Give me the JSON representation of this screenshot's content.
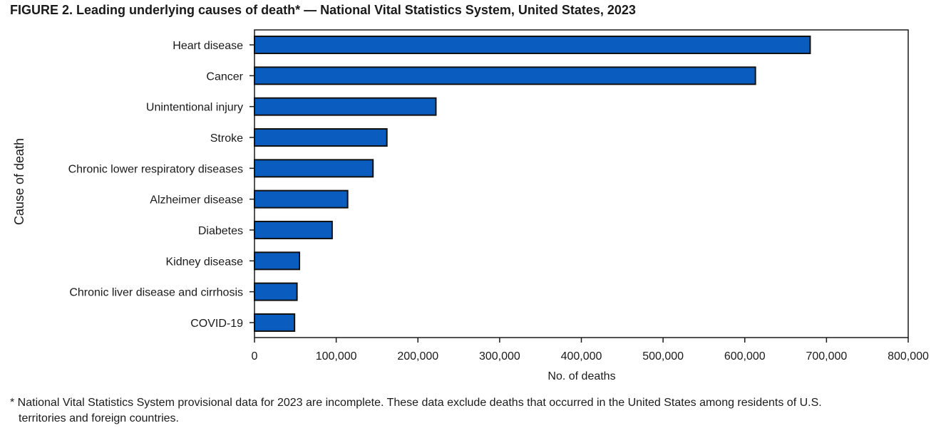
{
  "chart_data": {
    "type": "bar",
    "orientation": "horizontal",
    "title": "FIGURE 2. Leading underlying causes of death* — National Vital Statistics System, United States, 2023",
    "xlabel": "No. of deaths",
    "ylabel": "Cause of death",
    "xlim": [
      0,
      800000
    ],
    "xticks": [
      0,
      100000,
      200000,
      300000,
      400000,
      500000,
      600000,
      700000,
      800000
    ],
    "xtick_labels": [
      "0",
      "100,000",
      "200,000",
      "300,000",
      "400,000",
      "500,000",
      "600,000",
      "700,000",
      "800,000"
    ],
    "categories": [
      "Heart disease",
      "Cancer",
      "Unintentional injury",
      "Stroke",
      "Chronic lower respiratory diseases",
      "Alzheimer disease",
      "Diabetes",
      "Kidney disease",
      "Chronic liver disease and cirrhosis",
      "COVID-19"
    ],
    "values": [
      680000,
      613000,
      222000,
      162000,
      145000,
      114000,
      95000,
      55000,
      52000,
      49000
    ],
    "bar_color": "#0b5cbf",
    "grid": false,
    "legend": "none"
  },
  "footnote": {
    "line1": "* National Vital Statistics System provisional data for 2023 are incomplete. These data exclude deaths that occurred in the United States among residents of U.S.",
    "line2": "territories and foreign countries."
  }
}
